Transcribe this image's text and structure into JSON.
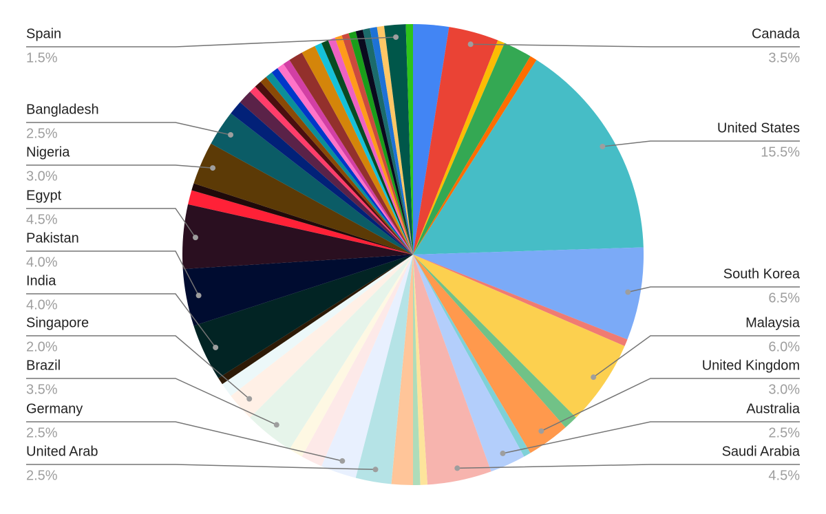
{
  "chart_data": {
    "type": "pie",
    "categories": [
      null,
      "Canada",
      null,
      null,
      null,
      "United States",
      "South Korea",
      null,
      "Malaysia",
      null,
      "United Kingdom",
      null,
      "Australia",
      "Saudi Arabia",
      null,
      null,
      null,
      "United Arab",
      "Germany",
      null,
      null,
      "Brazil",
      "Singapore",
      null,
      null,
      "India",
      "Pakistan",
      "Egypt",
      null,
      null,
      "Nigeria",
      "Bangladesh",
      null,
      null,
      null,
      null,
      null,
      null,
      null,
      null,
      null,
      null,
      null,
      null,
      null,
      null,
      null,
      null,
      null,
      null,
      null,
      null,
      null,
      "Spain",
      null
    ],
    "values": [
      2.5,
      3.5,
      0.5,
      2,
      0.5,
      15.5,
      6.5,
      0.5,
      6,
      1,
      3,
      0.5,
      2.5,
      4.5,
      0.5,
      0.5,
      1.5,
      2.5,
      2.5,
      1.5,
      1,
      3.5,
      2,
      1,
      0.5,
      4,
      4,
      4.5,
      1,
      0.5,
      3,
      2.5,
      1,
      1,
      0.5,
      0.5,
      0.5,
      0.5,
      0.5,
      0.5,
      0.5,
      1,
      1,
      0.5,
      0.5,
      0.5,
      0.5,
      0.5,
      0.5,
      0.5,
      0.5,
      0.5,
      0.5,
      1.5,
      0.5
    ],
    "value_labels": [
      null,
      "3.5%",
      null,
      null,
      null,
      "15.5%",
      "6.5%",
      null,
      "6.0%",
      null,
      "3.0%",
      null,
      "2.5%",
      "4.5%",
      null,
      null,
      null,
      "2.5%",
      "2.5%",
      null,
      null,
      "3.5%",
      "2.0%",
      null,
      null,
      "4.0%",
      "4.0%",
      "4.5%",
      null,
      null,
      "3.0%",
      "2.5%",
      null,
      null,
      null,
      null,
      null,
      null,
      null,
      null,
      null,
      null,
      null,
      null,
      null,
      null,
      null,
      null,
      null,
      null,
      null,
      null,
      null,
      "1.5%",
      null
    ],
    "colors": [
      "#4285f4",
      "#ea4335",
      "#fbbc04",
      "#34a853",
      "#ff6d01",
      "#46bdc6",
      "#7baaf7",
      "#f07b72",
      "#fcd04f",
      "#71c287",
      "#ff994d",
      "#7ed1d7",
      "#b3cefb",
      "#f7b4ae",
      "#fde49b",
      "#aedcba",
      "#ffc599",
      "#b5e3e6",
      "#e8f0fe",
      "#fde9e8",
      "#fef8e3",
      "#e6f4ea",
      "#fff0e6",
      "#ecf8f9",
      "#2d1a06",
      "#022424",
      "#000c30",
      "#2a0f20",
      "#ff2137",
      "#1f0a0a",
      "#5c3a06",
      "#0b5c66",
      "#022178",
      "#5a2248",
      "#ff3d6a",
      "#4a0f0f",
      "#8a4a06",
      "#0b8f99",
      "#0037c9",
      "#ff73c8",
      "#d23fa4",
      "#93302c",
      "#d4850a",
      "#16c1d9",
      "#094a22",
      "#ed61c2",
      "#ff9b1a",
      "#cc4a3e",
      "#1a9e1a",
      "#0a0a1e",
      "#1c6b6b",
      "#1e72d6",
      "#ffc766",
      "#00574a",
      "#2ec41a"
    ]
  }
}
